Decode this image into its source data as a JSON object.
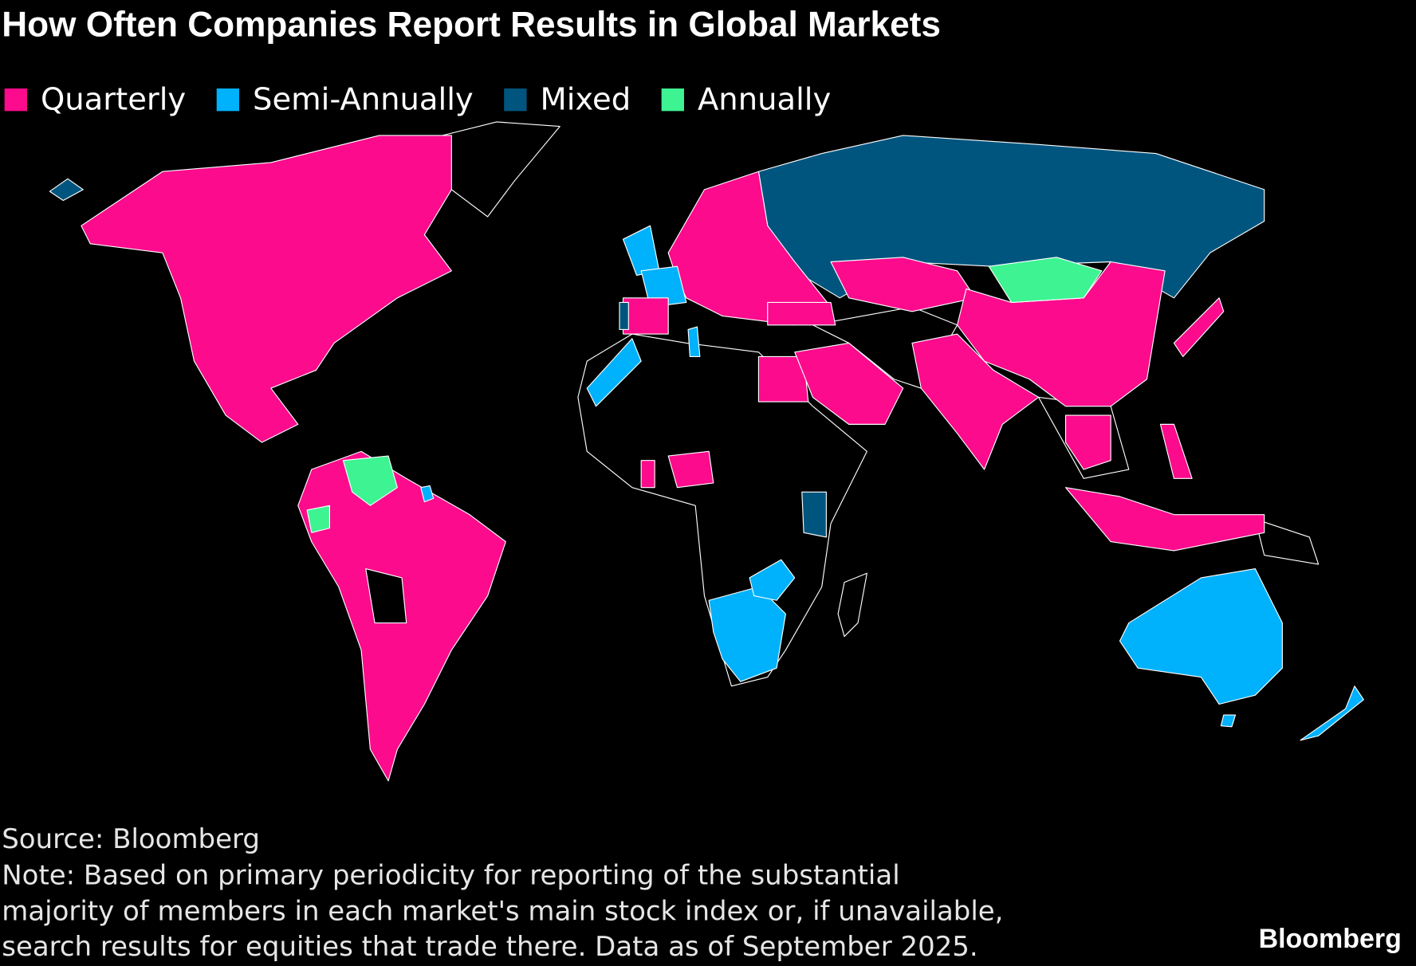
{
  "header": {
    "title": "How Often Companies Report Results in Global Markets"
  },
  "legend": [
    {
      "label": "Quarterly",
      "color": "#fc0b8c"
    },
    {
      "label": "Semi-Annually",
      "color": "#00b1fb"
    },
    {
      "label": "Mixed",
      "color": "#00557f"
    },
    {
      "label": "Annually",
      "color": "#3ef392"
    }
  ],
  "footer": {
    "source": "Source: Bloomberg",
    "note": [
      "Note: Based on primary periodicity for reporting of the substantial",
      "majority of members in each market's main stock index or, if unavailable,",
      "search results for equities that trade there. Data as of September 2025."
    ],
    "logo": "Bloomberg"
  }
}
